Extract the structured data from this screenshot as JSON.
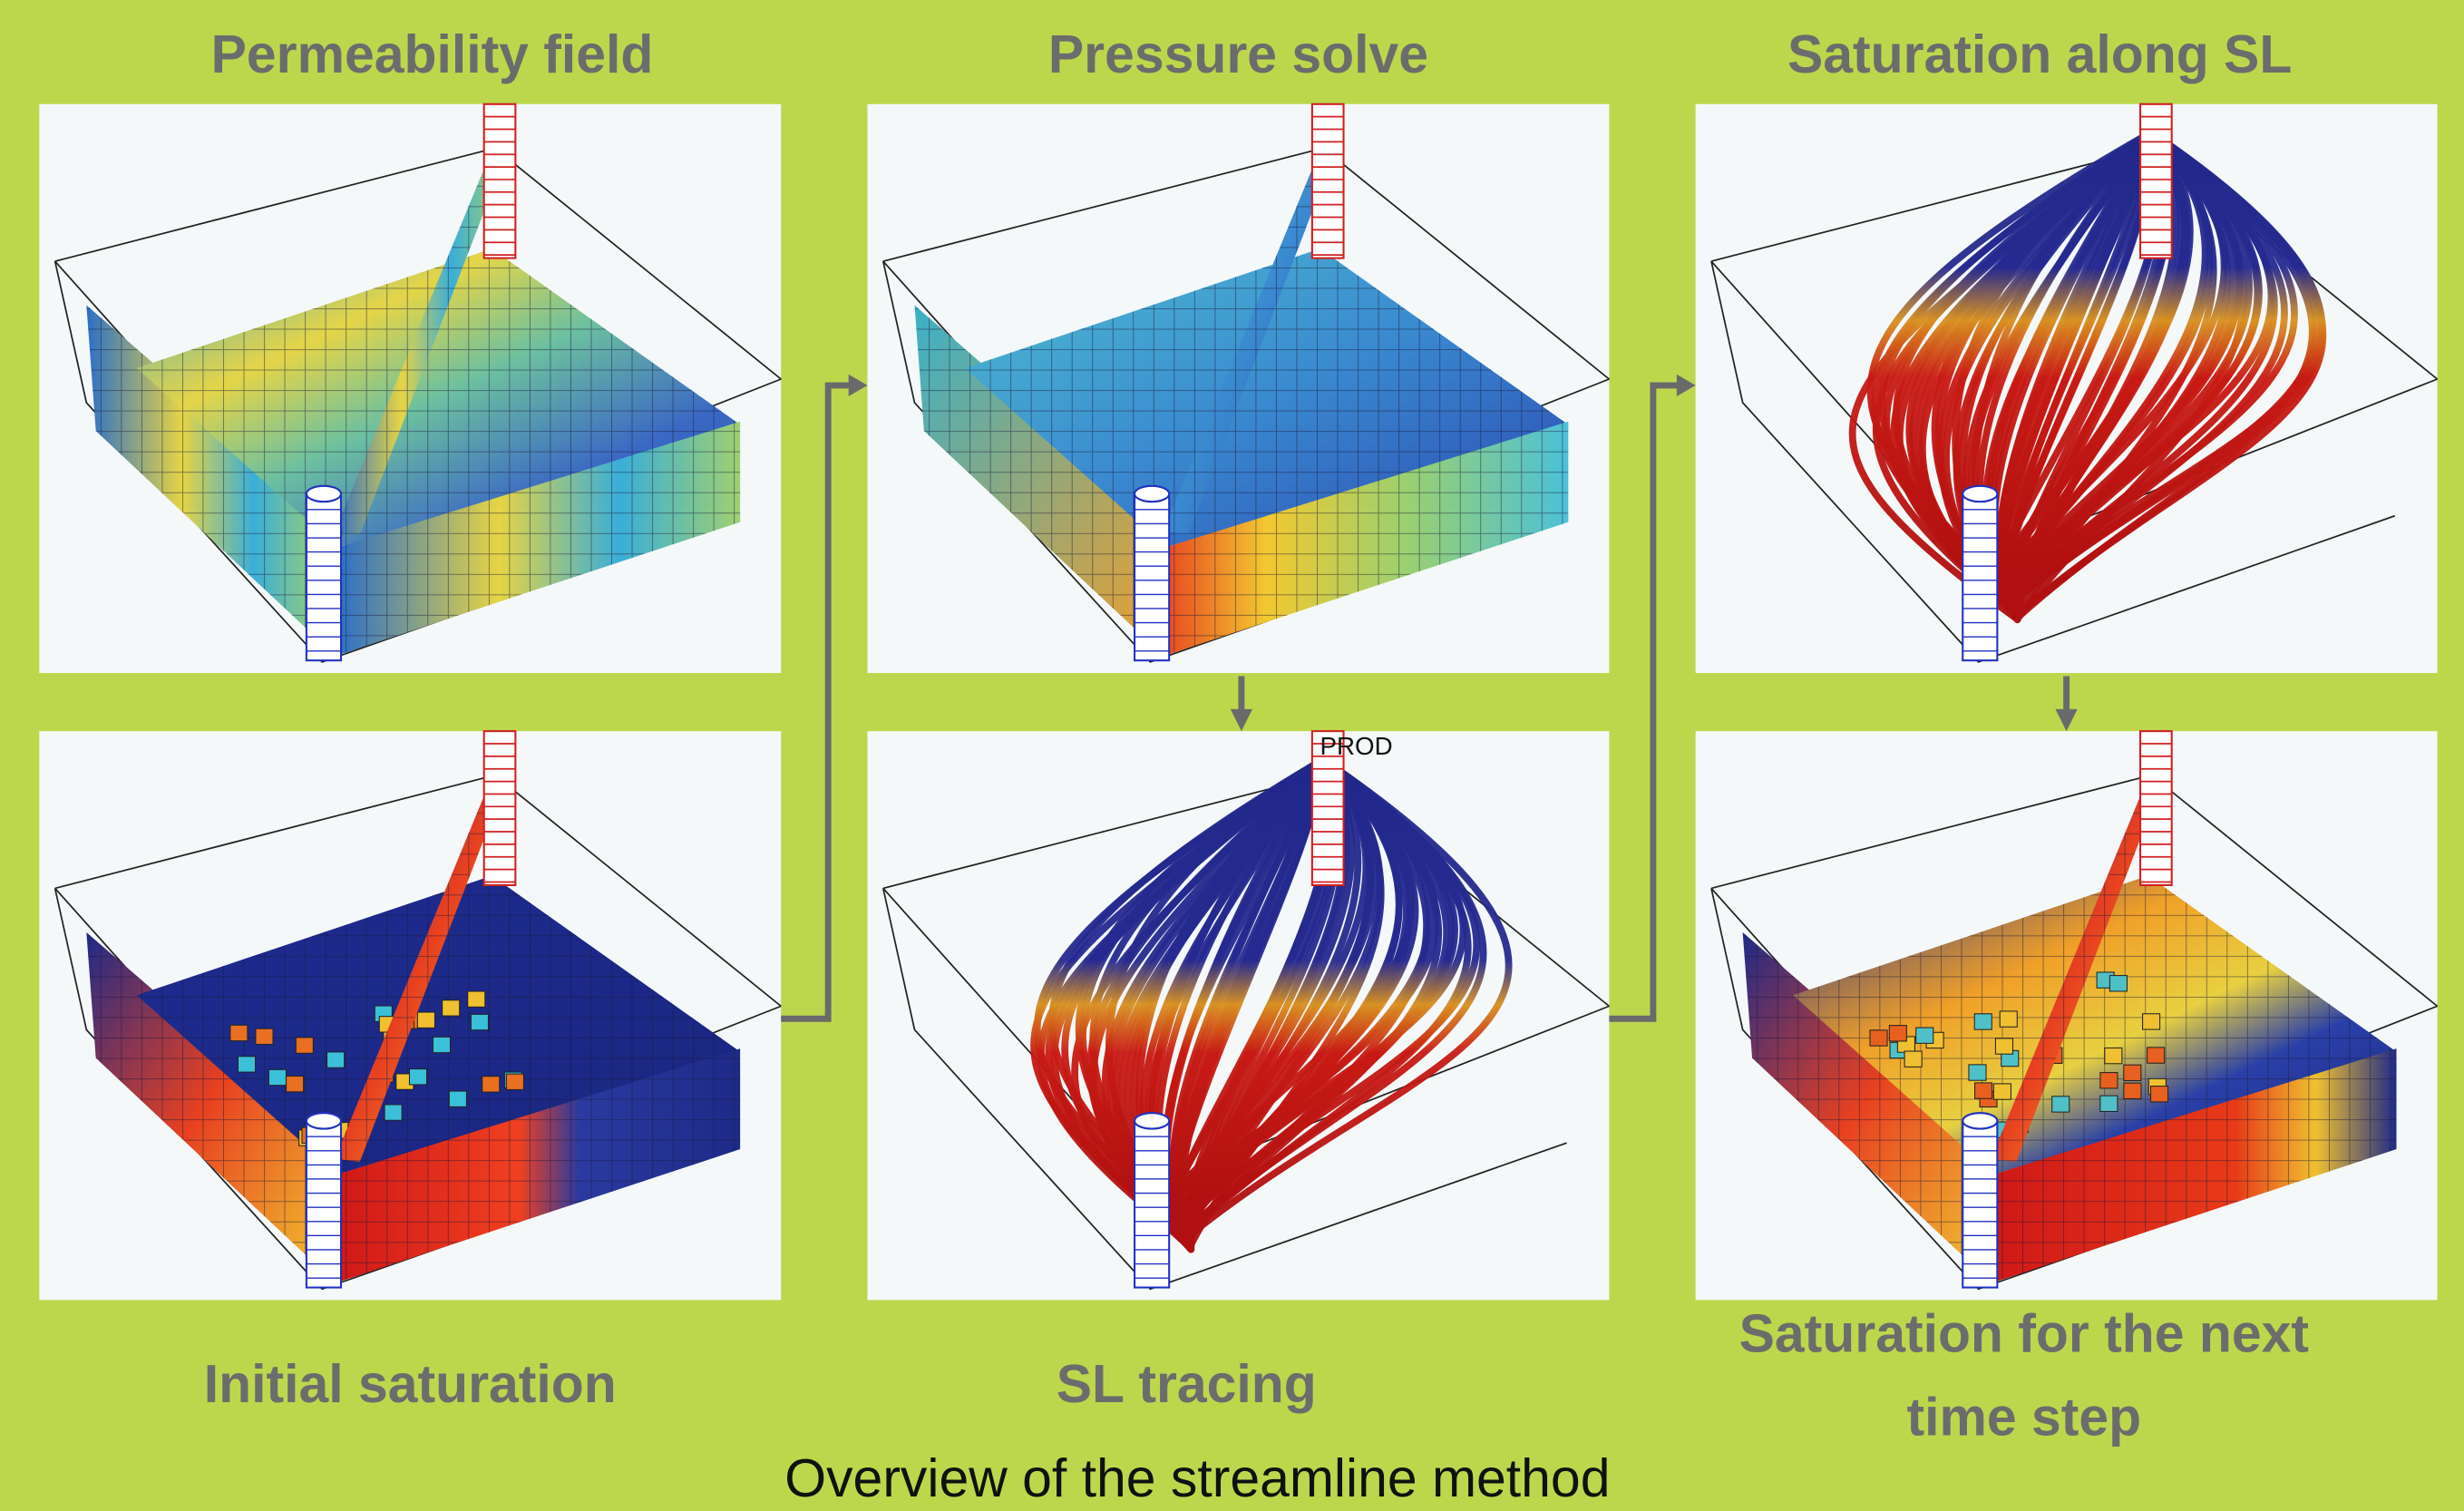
{
  "panels": [
    {
      "title": "Permeability field"
    },
    {
      "title": "Pressure solve"
    },
    {
      "title": "Saturation along SL"
    },
    {
      "title": "Initial saturation"
    },
    {
      "title": "SL tracing"
    },
    {
      "title_lines": [
        "Saturation for  the next",
        "time step"
      ]
    }
  ],
  "well_label": "PROD",
  "caption": "Overview of the streamline method"
}
